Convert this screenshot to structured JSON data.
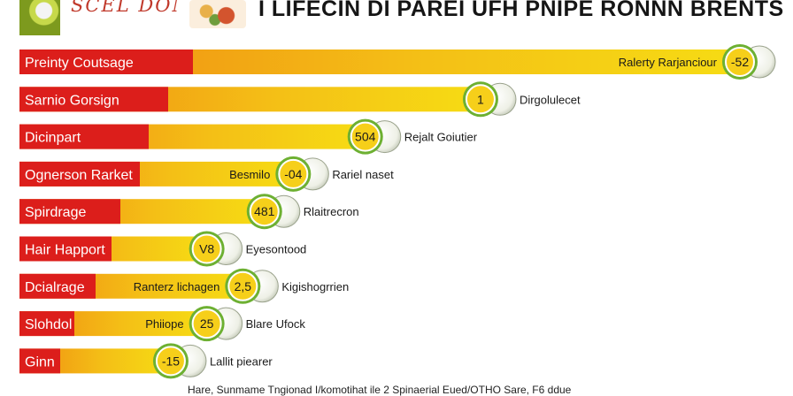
{
  "header": {
    "brand_script": "SCEL DOM",
    "title": "I LIFECIN DI PAREI UFH PNIPE RONNN BRENTS"
  },
  "footnote": "Hare, Sunmame Tngionad I/komotihat ile 2 Spinaerial Eued/OTHO Sare, F6 ddue",
  "colors": {
    "bar_red": "#dc1e1b",
    "bar_orange": "#f39d12",
    "bar_yellow": "#f5d415",
    "marker_fill": "#f6cf1a",
    "marker_ring": "#6db032"
  },
  "chart_data": {
    "type": "bar",
    "orientation": "horizontal",
    "categories": [
      "Preinty Coutsage",
      "Sarnio Gorsign",
      "Dicinpart",
      "Ognerson Rarket",
      "Spirdrage",
      "Hair Happort",
      "Dcialrage",
      "Slohdol",
      "Ginn"
    ],
    "markers": [
      "-52",
      "1",
      "504",
      "-04",
      "481",
      "V8",
      "2,5",
      "25",
      "-15"
    ],
    "inner_labels": [
      "Ralerty Rarjanciour",
      "",
      "",
      "Besmilo",
      "",
      "",
      "Ranterz lichagen",
      "Phiiope",
      ""
    ],
    "right_labels": [
      "",
      "Dirgolulecet",
      "Rejalt Goiutier",
      "Rariel naset",
      "Rlaitrecron",
      "Eyesontood",
      "Kigishogrrien",
      "Blare Ufock",
      "Lallit piearer"
    ],
    "values": [
      100,
      64,
      48,
      38,
      34,
      26,
      31,
      26,
      21
    ],
    "xlim": [
      0,
      100
    ]
  }
}
